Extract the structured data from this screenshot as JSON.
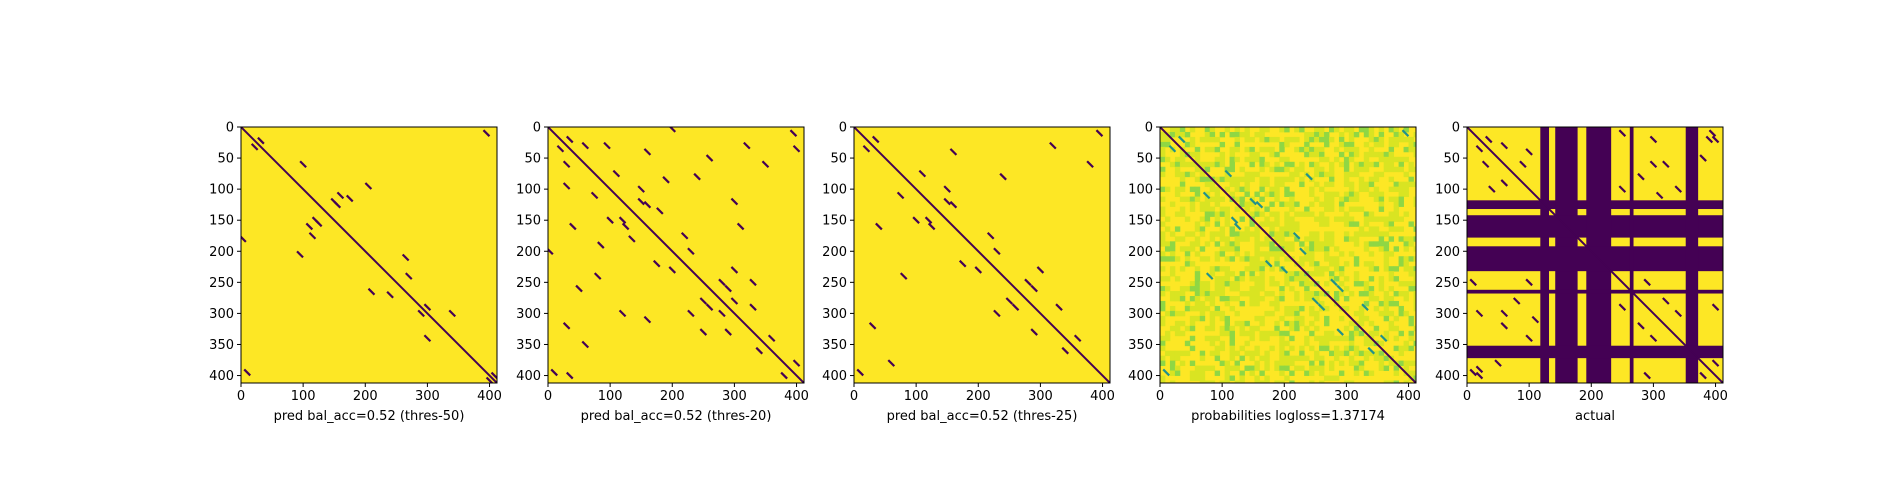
{
  "colors": {
    "background": "#fde725",
    "contact": "#440154",
    "prob_low": "#d9e422",
    "prob_mid": "#8fd744",
    "prob_high": "#35b779",
    "prob_teal": "#21918c",
    "axis": "#000000"
  },
  "chart_data": [
    {
      "type": "heatmap",
      "xlabel": "pred bal_acc=0.52 (thres-50)",
      "x_ticks": [
        0,
        100,
        200,
        300,
        400
      ],
      "y_ticks": [
        0,
        50,
        100,
        150,
        200,
        250,
        300,
        350,
        400
      ],
      "xlim": [
        0,
        412
      ],
      "ylim": [
        412,
        0
      ],
      "diagonal": true,
      "contacts": [
        [
          22,
          32
        ],
        [
          32,
          22
        ],
        [
          120,
          150
        ],
        [
          150,
          120
        ],
        [
          125,
          155
        ],
        [
          155,
          125
        ],
        [
          160,
          110
        ],
        [
          110,
          160
        ],
        [
          175,
          115
        ],
        [
          115,
          175
        ],
        [
          205,
          95
        ],
        [
          95,
          205
        ],
        [
          240,
          270
        ],
        [
          270,
          240
        ],
        [
          290,
          300
        ],
        [
          300,
          290
        ],
        [
          395,
          10
        ],
        [
          10,
          395
        ],
        [
          400,
          408
        ],
        [
          408,
          400
        ],
        [
          340,
          300
        ],
        [
          300,
          340
        ],
        [
          210,
          265
        ],
        [
          265,
          210
        ],
        [
          60,
          100
        ],
        [
          180,
          3
        ]
      ]
    },
    {
      "type": "heatmap",
      "xlabel": "pred bal_acc=0.52 (thres-20)",
      "x_ticks": [
        0,
        100,
        200,
        300,
        400
      ],
      "y_ticks": [
        0,
        50,
        100,
        150,
        200,
        250,
        300,
        350,
        400
      ],
      "xlim": [
        0,
        412
      ],
      "ylim": [
        412,
        0
      ],
      "diagonal": true,
      "contacts": [
        [
          20,
          35
        ],
        [
          35,
          20
        ],
        [
          75,
          110
        ],
        [
          110,
          75
        ],
        [
          120,
          150
        ],
        [
          150,
          120
        ],
        [
          125,
          160
        ],
        [
          160,
          125
        ],
        [
          150,
          100
        ],
        [
          100,
          150
        ],
        [
          175,
          220
        ],
        [
          220,
          175
        ],
        [
          200,
          230
        ],
        [
          230,
          200
        ],
        [
          250,
          280
        ],
        [
          280,
          250
        ],
        [
          260,
          290
        ],
        [
          290,
          260
        ],
        [
          280,
          300
        ],
        [
          300,
          280
        ],
        [
          340,
          360
        ],
        [
          360,
          340
        ],
        [
          380,
          400
        ],
        [
          400,
          380
        ],
        [
          10,
          395
        ],
        [
          395,
          10
        ],
        [
          30,
          60
        ],
        [
          60,
          30
        ],
        [
          85,
          190
        ],
        [
          190,
          85
        ],
        [
          240,
          80
        ],
        [
          80,
          240
        ],
        [
          230,
          300
        ],
        [
          300,
          230
        ],
        [
          330,
          250
        ],
        [
          250,
          330
        ],
        [
          120,
          300
        ],
        [
          300,
          120
        ],
        [
          40,
          160
        ],
        [
          160,
          40
        ],
        [
          290,
          330
        ],
        [
          330,
          290
        ],
        [
          350,
          60
        ],
        [
          60,
          350
        ],
        [
          160,
          310
        ],
        [
          310,
          160
        ],
        [
          35,
          400
        ],
        [
          400,
          35
        ],
        [
          320,
          30
        ],
        [
          30,
          320
        ],
        [
          260,
          50
        ],
        [
          50,
          260
        ],
        [
          200,
          3
        ],
        [
          3,
          200
        ],
        [
          180,
          135
        ],
        [
          135,
          180
        ],
        [
          95,
          30
        ],
        [
          30,
          95
        ]
      ]
    },
    {
      "type": "heatmap",
      "xlabel": "pred bal_acc=0.52 (thres-25)",
      "x_ticks": [
        0,
        100,
        200,
        300,
        400
      ],
      "y_ticks": [
        0,
        50,
        100,
        150,
        200,
        250,
        300,
        350,
        400
      ],
      "xlim": [
        0,
        412
      ],
      "ylim": [
        412,
        0
      ],
      "diagonal": true,
      "contacts": [
        [
          20,
          35
        ],
        [
          35,
          20
        ],
        [
          75,
          110
        ],
        [
          110,
          75
        ],
        [
          120,
          150
        ],
        [
          150,
          120
        ],
        [
          125,
          160
        ],
        [
          160,
          125
        ],
        [
          150,
          100
        ],
        [
          100,
          150
        ],
        [
          175,
          220
        ],
        [
          220,
          175
        ],
        [
          200,
          230
        ],
        [
          230,
          200
        ],
        [
          250,
          280
        ],
        [
          280,
          250
        ],
        [
          260,
          290
        ],
        [
          290,
          260
        ],
        [
          340,
          360
        ],
        [
          360,
          340
        ],
        [
          10,
          395
        ],
        [
          395,
          10
        ],
        [
          40,
          160
        ],
        [
          160,
          40
        ],
        [
          240,
          80
        ],
        [
          80,
          240
        ],
        [
          290,
          330
        ],
        [
          330,
          290
        ],
        [
          380,
          60
        ],
        [
          60,
          380
        ],
        [
          320,
          30
        ],
        [
          30,
          320
        ],
        [
          230,
          300
        ],
        [
          300,
          230
        ]
      ]
    },
    {
      "type": "heatmap",
      "xlabel": "probabilities logloss=1.37174",
      "x_ticks": [
        0,
        100,
        200,
        300,
        400
      ],
      "y_ticks": [
        0,
        50,
        100,
        150,
        200,
        250,
        300,
        350,
        400
      ],
      "xlim": [
        0,
        412
      ],
      "ylim": [
        412,
        0
      ],
      "diagonal": true,
      "contacts": [
        [
          20,
          35
        ],
        [
          35,
          20
        ],
        [
          75,
          110
        ],
        [
          110,
          75
        ],
        [
          120,
          150
        ],
        [
          150,
          120
        ],
        [
          125,
          160
        ],
        [
          160,
          125
        ],
        [
          175,
          220
        ],
        [
          220,
          175
        ],
        [
          200,
          230
        ],
        [
          230,
          200
        ],
        [
          250,
          280
        ],
        [
          280,
          250
        ],
        [
          260,
          290
        ],
        [
          290,
          260
        ],
        [
          340,
          360
        ],
        [
          360,
          340
        ],
        [
          10,
          395
        ],
        [
          395,
          10
        ],
        [
          240,
          80
        ],
        [
          80,
          240
        ],
        [
          290,
          330
        ],
        [
          330,
          290
        ]
      ]
    },
    {
      "type": "heatmap",
      "xlabel": "actual",
      "x_ticks": [
        0,
        100,
        200,
        300,
        400
      ],
      "y_ticks": [
        0,
        50,
        100,
        150,
        200,
        250,
        300,
        350,
        400
      ],
      "xlim": [
        0,
        412
      ],
      "ylim": [
        412,
        0
      ],
      "diagonal": true,
      "bands": [
        [
          118,
          132
        ],
        [
          142,
          178
        ],
        [
          192,
          232
        ],
        [
          262,
          268
        ],
        [
          352,
          372
        ]
      ],
      "contacts": [
        [
          20,
          35
        ],
        [
          35,
          20
        ],
        [
          30,
          60
        ],
        [
          60,
          30
        ],
        [
          60,
          90
        ],
        [
          90,
          60
        ],
        [
          250,
          290
        ],
        [
          290,
          250
        ],
        [
          280,
          320
        ],
        [
          320,
          280
        ],
        [
          300,
          340
        ],
        [
          340,
          300
        ],
        [
          330,
          360
        ],
        [
          360,
          330
        ],
        [
          380,
          400
        ],
        [
          400,
          380
        ],
        [
          10,
          395
        ],
        [
          395,
          10
        ],
        [
          40,
          100
        ],
        [
          100,
          40
        ],
        [
          300,
          20
        ],
        [
          20,
          300
        ],
        [
          320,
          60
        ],
        [
          60,
          320
        ],
        [
          390,
          20
        ],
        [
          20,
          390
        ],
        [
          290,
          400
        ],
        [
          400,
          290
        ],
        [
          60,
          300
        ],
        [
          300,
          60
        ],
        [
          100,
          250
        ],
        [
          250,
          100
        ],
        [
          340,
          100
        ],
        [
          100,
          340
        ],
        [
          20,
          400
        ],
        [
          400,
          20
        ],
        [
          10,
          250
        ],
        [
          250,
          10
        ],
        [
          80,
          280
        ],
        [
          280,
          80
        ],
        [
          50,
          380
        ],
        [
          380,
          50
        ],
        [
          110,
          310
        ],
        [
          310,
          110
        ],
        [
          5,
          360
        ],
        [
          360,
          5
        ]
      ]
    }
  ]
}
